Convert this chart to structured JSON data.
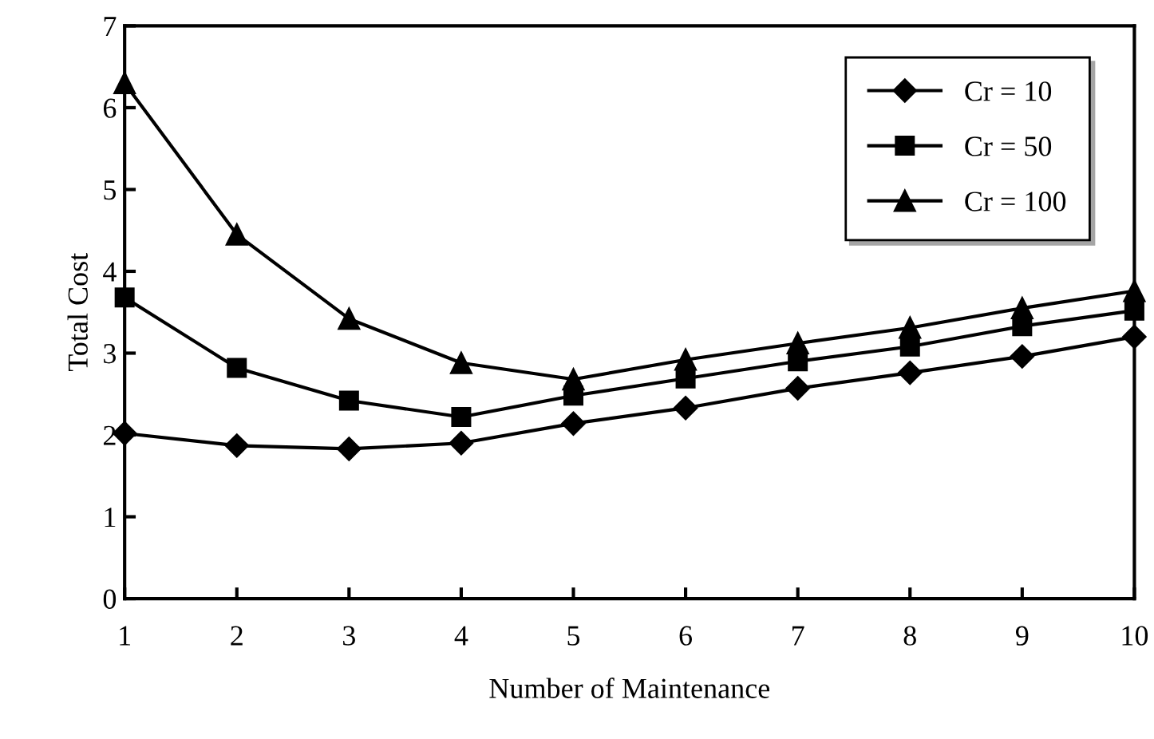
{
  "chart_data": {
    "type": "line",
    "xlabel": "Number of Maintenance",
    "ylabel": "Total Cost",
    "x": [
      1,
      2,
      3,
      4,
      5,
      6,
      7,
      8,
      9,
      10
    ],
    "series": [
      {
        "name": "Cr = 10",
        "color": "#000000",
        "marker": "diamond",
        "values": [
          2.02,
          1.87,
          1.83,
          1.9,
          2.14,
          2.33,
          2.57,
          2.76,
          2.96,
          3.2
        ]
      },
      {
        "name": "Cr = 50",
        "color": "#000000",
        "marker": "square",
        "values": [
          3.68,
          2.82,
          2.42,
          2.22,
          2.48,
          2.69,
          2.9,
          3.08,
          3.33,
          3.52
        ]
      },
      {
        "name": "Cr = 100",
        "color": "#000000",
        "marker": "triangle",
        "values": [
          6.3,
          4.45,
          3.42,
          2.88,
          2.68,
          2.92,
          3.12,
          3.31,
          3.55,
          3.76
        ]
      }
    ],
    "xlim": [
      1,
      10
    ],
    "xticks": [
      1,
      2,
      3,
      4,
      5,
      6,
      7,
      8,
      9,
      10
    ],
    "ylim": [
      0,
      7
    ],
    "yticks": [
      0,
      1,
      2,
      3,
      4,
      5,
      6,
      7
    ],
    "grid": false,
    "legend": "top right",
    "line_style": "solid"
  }
}
